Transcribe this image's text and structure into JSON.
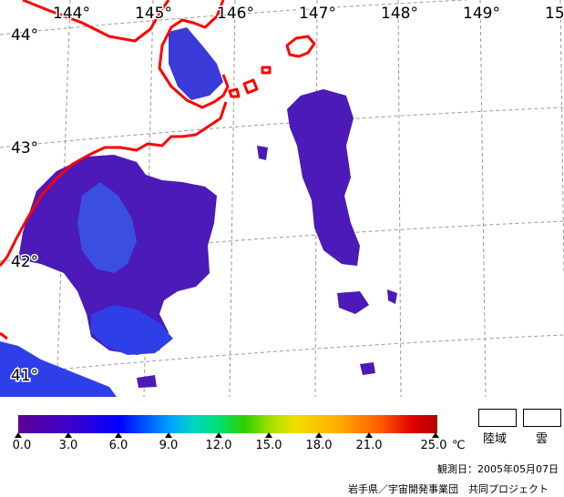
{
  "map": {
    "longitude_labels": [
      "144°",
      "145°",
      "146°",
      "147°",
      "148°",
      "149°",
      "15"
    ],
    "latitude_labels": [
      "44°",
      "43°",
      "42°",
      "41°"
    ],
    "colors": {
      "coastline": "#ff0000",
      "graticule": "#999999",
      "sst_cold": "#5a0096",
      "sst_mid": "#2020e0",
      "sst_warm": "#3a70f0"
    }
  },
  "colorbar": {
    "ticks": [
      "0.0",
      "3.0",
      "6.0",
      "9.0",
      "12.0",
      "15.0",
      "18.0",
      "21.0",
      "25.0"
    ],
    "unit": "℃"
  },
  "legend": {
    "land_label": "陸域",
    "cloud_label": "雲"
  },
  "credits": {
    "observation_date": "観測日：2005年05月07日",
    "organization": "岩手県／宇宙開発事業団　共同プロジェクト"
  }
}
